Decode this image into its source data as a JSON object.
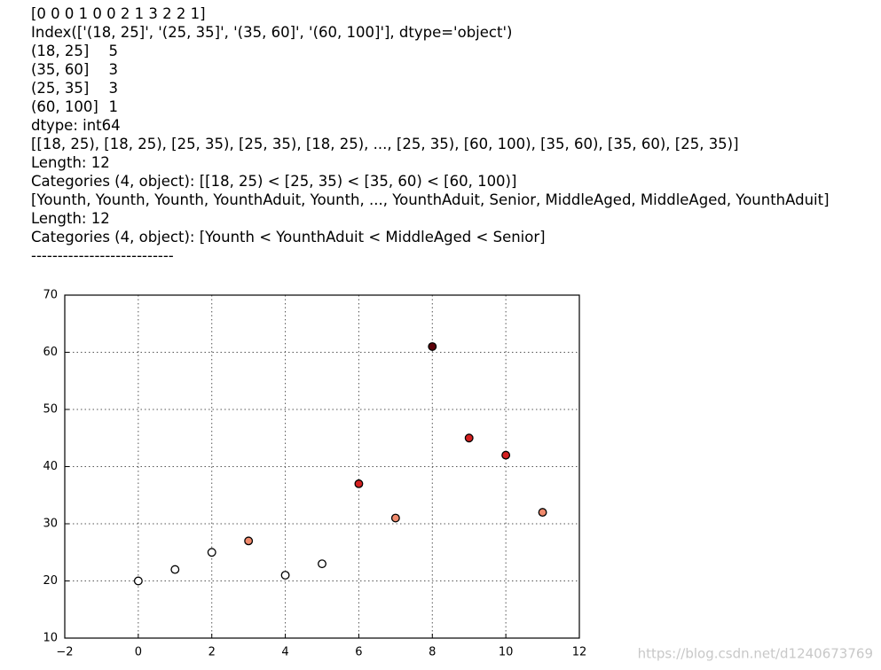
{
  "console": {
    "lines_before": [
      "[0 0 0 1 0 0 2 1 3 2 2 1]",
      "Index(['(18, 25]', '(25, 35]', '(35, 60]', '(60, 100]'], dtype='object')"
    ],
    "value_counts": [
      {
        "label": "(18, 25]",
        "count": 5
      },
      {
        "label": "(35, 60]",
        "count": 3
      },
      {
        "label": "(25, 35]",
        "count": 3
      },
      {
        "label": "(60, 100]",
        "count": 1
      }
    ],
    "lines_after": [
      "dtype: int64",
      "[[18, 25), [18, 25), [25, 35), [25, 35), [18, 25), ..., [25, 35), [60, 100), [35, 60), [35, 60), [25, 35)]",
      "Length: 12",
      "Categories (4, object): [[18, 25) < [25, 35) < [35, 60) < [60, 100)]",
      "[Younth, Younth, Younth, YounthAduit, Younth, ..., YounthAduit, Senior, MiddleAged, MiddleAged, YounthAduit]",
      "Length: 12",
      "Categories (4, object): [Younth < YounthAduit < MiddleAged < Senior]",
      "---------------------------"
    ]
  },
  "watermark": "https://blog.csdn.net/d1240673769",
  "chart_data": {
    "type": "scatter",
    "x": [
      0,
      1,
      2,
      3,
      4,
      5,
      6,
      7,
      8,
      9,
      10,
      11
    ],
    "values": [
      20,
      22,
      25,
      27,
      21,
      23,
      37,
      31,
      61,
      45,
      42,
      32
    ],
    "colors": [
      "#ffffff",
      "#ffffff",
      "#ffffff",
      "#f08a6c",
      "#ffffff",
      "#ffffff",
      "#d42020",
      "#f08a6c",
      "#5c0008",
      "#d42020",
      "#d42020",
      "#f08a6c"
    ],
    "xlim": [
      -2,
      12
    ],
    "ylim": [
      10,
      70
    ],
    "xticks": [
      {
        "value": -2,
        "label": "−2"
      },
      0,
      2,
      4,
      6,
      8,
      10,
      12
    ],
    "yticks": [
      10,
      20,
      30,
      40,
      50,
      60,
      70
    ],
    "grid": true
  }
}
